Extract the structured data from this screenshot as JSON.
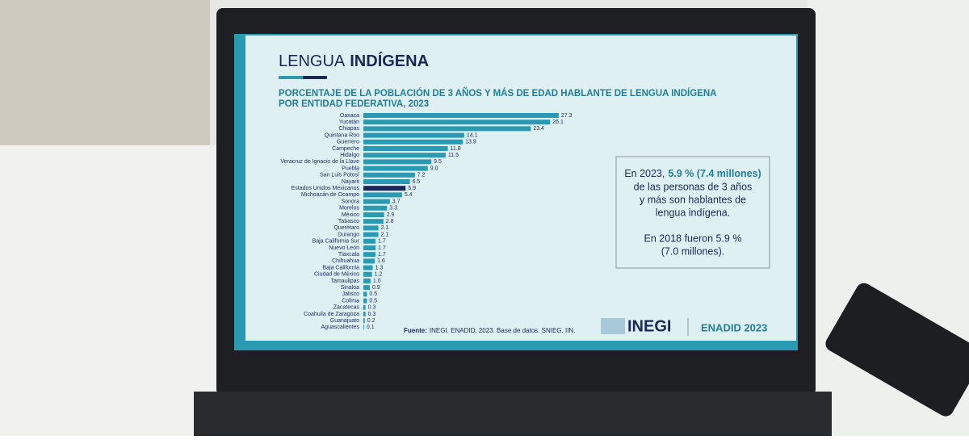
{
  "chart_data": {
    "type": "bar",
    "orientation": "horizontal",
    "title_light": "LENGUA",
    "title_bold": "INDÍGENA",
    "subtitle_lines": [
      "PORCENTAJE DE LA POBLACIÓN DE 3 AÑOS Y MÁS DE EDAD HABLANTE DE LENGUA INDÍGENA",
      "POR ENTIDAD FEDERATIVA, 2023"
    ],
    "categories": [
      "Oaxaca",
      "Yucatán",
      "Chiapas",
      "Quintana Roo",
      "Guerrero",
      "Campeche",
      "Hidalgo",
      "Veracruz de Ignacio de la Llave",
      "Puebla",
      "San Luis Potosí",
      "Nayarit",
      "Estados Unidos Mexicanos",
      "Michoacán de Ocampo",
      "Sonora",
      "Morelos",
      "México",
      "Tabasco",
      "Querétaro",
      "Durango",
      "Baja California Sur",
      "Nuevo León",
      "Tlaxcala",
      "Chihuahua",
      "Baja California",
      "Ciudad de México",
      "Tamaulipas",
      "Sinaloa",
      "Jalisco",
      "Colima",
      "Zacatecas",
      "Coahuila de Zaragoza",
      "Guanajuato",
      "Aguascalientes"
    ],
    "values": [
      27.3,
      26.1,
      23.4,
      14.1,
      13.9,
      11.8,
      11.5,
      9.5,
      9.0,
      7.2,
      6.5,
      5.9,
      5.4,
      3.7,
      3.3,
      2.9,
      2.8,
      2.1,
      2.1,
      1.7,
      1.7,
      1.7,
      1.6,
      1.3,
      1.2,
      1.0,
      0.9,
      0.5,
      0.5,
      0.3,
      0.3,
      0.2,
      0.1
    ],
    "value_labels": [
      "27.3",
      "26.1",
      "23.4",
      "14.1",
      "13.9",
      "11.8",
      "11.5",
      "9.5",
      "9.0",
      "7.2",
      "6.5",
      "5.9",
      "5.4",
      "3.7",
      "3.3",
      "2.9",
      "2.8",
      "2.1",
      "2.1",
      "1.7",
      "1.7",
      "1.7",
      "1.6",
      "1.3",
      "1.2",
      "1.0",
      "0.9",
      "0.5",
      "0.5",
      "0.3",
      "0.3",
      "0.2",
      "0.1"
    ],
    "colors": [
      "#2a9ab3",
      "#2a9ab3",
      "#2a9ab3",
      "#2a9ab3",
      "#2a9ab3",
      "#2a9ab3",
      "#2a9ab3",
      "#2a9ab3",
      "#2a9ab3",
      "#2a9ab3",
      "#2a9ab3",
      "#1b2856",
      "#2a9ab3",
      "#2a9ab3",
      "#2a9ab3",
      "#2a9ab3",
      "#2a9ab3",
      "#2a9ab3",
      "#2a9ab3",
      "#2a9ab3",
      "#2a9ab3",
      "#2a9ab3",
      "#2a9ab3",
      "#2a9ab3",
      "#2a9ab3",
      "#2a9ab3",
      "#2a9ab3",
      "#2a9ab3",
      "#2a9ab3",
      "#2a9ab3",
      "#2a9ab3",
      "#2a9ab3",
      "#2a9ab3"
    ],
    "note_lead": "En 2023,",
    "note_highlight": "5.9 % (7.4 millones)",
    "note_lines": [
      "de las personas de 3 años",
      "y más son hablantes de",
      "lengua indígena."
    ],
    "note2_lines": [
      "En 2018 fueron 5.9 %",
      "(7.0 millones)."
    ],
    "source_label": "Fuente:",
    "source": "INEGI. ENADID, 2023. Base de datos. SNIEG. IIN.",
    "logo": "INEGI",
    "survey": "ENADID 2023"
  }
}
